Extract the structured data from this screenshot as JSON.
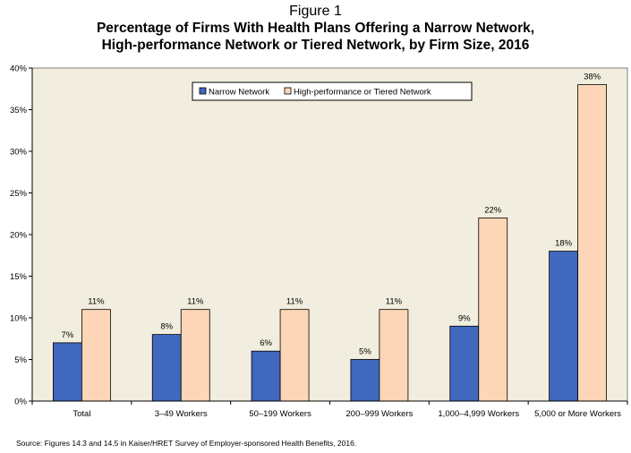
{
  "header": {
    "figure_label": "Figure 1",
    "title_line1": "Percentage of Firms With Health Plans Offering a Narrow Network,",
    "title_line2": "High-performance Network or Tiered Network, by Firm Size, 2016"
  },
  "footer": {
    "source": "Source: Figures 14.3 and 14.5 in Kaiser/HRET Survey of Employer-sponsored Health Benefits, 2016."
  },
  "chart_data": {
    "type": "bar",
    "categories": [
      "Total",
      "3–49 Workers",
      "50–199 Workers",
      "200–999 Workers",
      "1,000–4,999 Workers",
      "5,000 or More Workers"
    ],
    "series": [
      {
        "name": "Narrow Network",
        "values": [
          7,
          8,
          6,
          5,
          9,
          18
        ],
        "labels": [
          "7%",
          "8%",
          "6%",
          "5%",
          "9%",
          "18%"
        ],
        "color": "#3f68be"
      },
      {
        "name": "High-performance or Tiered Network",
        "values": [
          11,
          11,
          11,
          11,
          22,
          38
        ],
        "labels": [
          "11%",
          "11%",
          "11%",
          "11%",
          "22%",
          "38%"
        ],
        "color": "#fcd6b6"
      }
    ],
    "ylim": [
      0,
      40
    ],
    "yticks": [
      0,
      5,
      10,
      15,
      20,
      25,
      30,
      35,
      40
    ],
    "ytick_labels": [
      "0%",
      "5%",
      "10%",
      "15%",
      "20%",
      "25%",
      "30%",
      "35%",
      "40%"
    ],
    "xlabel": "",
    "ylabel": "",
    "grid": false,
    "plot_background": "#f2eedf",
    "legend_position": "top-center"
  }
}
